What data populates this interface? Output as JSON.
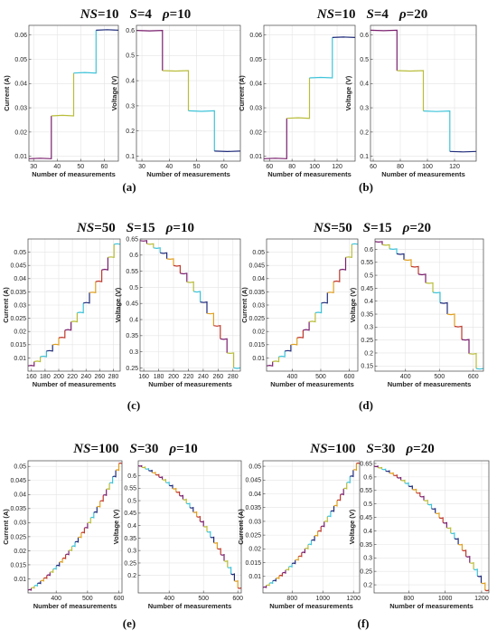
{
  "colors": [
    "#7a1f6e",
    "#b9bd3a",
    "#3ec3d9",
    "#1f2b7a",
    "#e0a020",
    "#c0392b"
  ],
  "groups": [
    {
      "id": "a",
      "label": "(a)",
      "title": {
        "ns_label": "NS",
        "ns_value": "=10",
        "s_label": "S",
        "s_value": "=4",
        "rho_label": "ρ",
        "rho_value": "=10"
      }
    },
    {
      "id": "b",
      "label": "(b)",
      "title": {
        "ns_label": "NS",
        "ns_value": "=10",
        "s_label": "S",
        "s_value": "=4",
        "rho_label": "ρ",
        "rho_value": "=20"
      }
    },
    {
      "id": "c",
      "label": "(c)",
      "title": {
        "ns_label": "NS",
        "ns_value": "=50",
        "s_label": "S",
        "s_value": "=15",
        "rho_label": "ρ",
        "rho_value": "=10"
      }
    },
    {
      "id": "d",
      "label": "(d)",
      "title": {
        "ns_label": "NS",
        "ns_value": "=50",
        "s_label": "S",
        "s_value": "=15",
        "rho_label": "ρ",
        "rho_value": "=20"
      }
    },
    {
      "id": "e",
      "label": "(e)",
      "title": {
        "ns_label": "NS",
        "ns_value": "=100",
        "s_label": "S",
        "s_value": "=30",
        "rho_label": "ρ",
        "rho_value": "=10"
      }
    },
    {
      "id": "f",
      "label": "(f)",
      "title": {
        "ns_label": "NS",
        "ns_value": "=100",
        "s_label": "S",
        "s_value": "=30",
        "rho_label": "ρ",
        "rho_value": "=20"
      }
    }
  ],
  "chart_data": [
    {
      "id": "a-current",
      "type": "line",
      "xlabel": "Number of measurements",
      "ylabel": "Current (A)",
      "xlim": [
        28,
        66
      ],
      "ylim": [
        0.008,
        0.064
      ],
      "xticks": [
        "30",
        "40",
        "50",
        "60"
      ],
      "yticks": [
        "0.01",
        "0.02",
        "0.03",
        "0.04",
        "0.05",
        "0.06"
      ],
      "steps": 4,
      "y_start": 0.009,
      "y_end": 0.062,
      "curve": "linear"
    },
    {
      "id": "a-voltage",
      "type": "line",
      "xlabel": "Number of measurements",
      "ylabel": "Voltage (V)",
      "xlim": [
        28,
        66
      ],
      "ylim": [
        0.08,
        0.62
      ],
      "xticks": [
        "30",
        "40",
        "50",
        "60"
      ],
      "yticks": [
        "0.1",
        "0.2",
        "0.3",
        "0.4",
        "0.5",
        "0.6"
      ],
      "steps": 4,
      "y_start": 0.6,
      "y_end": 0.12,
      "curve": "linear"
    },
    {
      "id": "b-current",
      "type": "line",
      "xlabel": "Number of measurements",
      "ylabel": "Current (A)",
      "xlim": [
        55,
        136
      ],
      "ylim": [
        0.008,
        0.064
      ],
      "xticks": [
        "60",
        "80",
        "100",
        "120"
      ],
      "yticks": [
        "0.01",
        "0.02",
        "0.03",
        "0.04",
        "0.05",
        "0.06"
      ],
      "steps": 4,
      "y_start": 0.009,
      "y_end": 0.059,
      "curve": "linear"
    },
    {
      "id": "b-voltage",
      "type": "line",
      "xlabel": "Number of measurements",
      "ylabel": "Voltage (V)",
      "xlim": [
        58,
        136
      ],
      "ylim": [
        0.08,
        0.64
      ],
      "xticks": [
        "60",
        "80",
        "100",
        "120"
      ],
      "yticks": [
        "0.1",
        "0.2",
        "0.3",
        "0.4",
        "0.5",
        "0.6"
      ],
      "steps": 4,
      "y_start": 0.62,
      "y_end": 0.12,
      "curve": "linear"
    },
    {
      "id": "c-current",
      "type": "line",
      "xlabel": "Number of measurements",
      "ylabel": "Current (A)",
      "xlim": [
        155,
        290
      ],
      "ylim": [
        0.005,
        0.055
      ],
      "xticks": [
        "160",
        "180",
        "200",
        "220",
        "240",
        "260",
        "280"
      ],
      "yticks": [
        "0.01",
        "0.015",
        "0.02",
        "0.025",
        "0.03",
        "0.035",
        "0.04",
        "0.045",
        "0.05"
      ],
      "steps": 15,
      "y_start": 0.007,
      "y_end": 0.053,
      "curve": "rising"
    },
    {
      "id": "c-voltage",
      "type": "line",
      "xlabel": "Number of measurements",
      "ylabel": "Voltage (V)",
      "xlim": [
        155,
        290
      ],
      "ylim": [
        0.24,
        0.65
      ],
      "xticks": [
        "160",
        "180",
        "200",
        "220",
        "240",
        "260",
        "280"
      ],
      "yticks": [
        "0.25",
        "0.3",
        "0.35",
        "0.4",
        "0.45",
        "0.5",
        "0.55",
        "0.6",
        "0.65"
      ],
      "steps": 15,
      "y_start": 0.645,
      "y_end": 0.25,
      "curve": "falling"
    },
    {
      "id": "d-current",
      "type": "line",
      "xlabel": "Number of measurements",
      "ylabel": "Current (A)",
      "xlim": [
        310,
        630
      ],
      "ylim": [
        0.005,
        0.055
      ],
      "xticks": [
        "400",
        "500",
        "600"
      ],
      "yticks": [
        "0.01",
        "0.015",
        "0.02",
        "0.025",
        "0.03",
        "0.035",
        "0.04",
        "0.045",
        "0.05"
      ],
      "steps": 15,
      "y_start": 0.007,
      "y_end": 0.053,
      "curve": "rising"
    },
    {
      "id": "d-voltage",
      "type": "line",
      "xlabel": "Number of measurements",
      "ylabel": "Voltage (V)",
      "xlim": [
        310,
        630
      ],
      "ylim": [
        0.13,
        0.64
      ],
      "xticks": [
        "400",
        "500",
        "600"
      ],
      "yticks": [
        "0.15",
        "0.2",
        "0.25",
        "0.3",
        "0.35",
        "0.4",
        "0.45",
        "0.5",
        "0.55",
        "0.6"
      ],
      "steps": 15,
      "y_start": 0.63,
      "y_end": 0.14,
      "curve": "falling"
    },
    {
      "id": "e-current",
      "type": "line",
      "xlabel": "Number of measurements",
      "ylabel": "Current (A)",
      "xlim": [
        310,
        610
      ],
      "ylim": [
        0.005,
        0.052
      ],
      "xticks": [
        "400",
        "500",
        "600"
      ],
      "yticks": [
        "0.01",
        "0.015",
        "0.02",
        "0.025",
        "0.03",
        "0.035",
        "0.04",
        "0.045",
        "0.05"
      ],
      "steps": 30,
      "y_start": 0.006,
      "y_end": 0.051,
      "curve": "rising"
    },
    {
      "id": "e-voltage",
      "type": "line",
      "xlabel": "Number of measurements",
      "ylabel": "Voltage (V)",
      "xlim": [
        310,
        610
      ],
      "ylim": [
        0.13,
        0.66
      ],
      "xticks": [
        "400",
        "500",
        "600"
      ],
      "yticks": [
        "0.2",
        "0.25",
        "0.3",
        "0.35",
        "0.4",
        "0.45",
        "0.5",
        "0.55",
        "0.6"
      ],
      "steps": 30,
      "y_start": 0.64,
      "y_end": 0.15,
      "curve": "falling"
    },
    {
      "id": "f-current",
      "type": "line",
      "xlabel": "Number of measurements",
      "ylabel": "Current (A)",
      "xlim": [
        610,
        1240
      ],
      "ylim": [
        0.004,
        0.052
      ],
      "xticks": [
        "800",
        "1000",
        "1200"
      ],
      "yticks": [
        "0.01",
        "0.015",
        "0.02",
        "0.025",
        "0.03",
        "0.035",
        "0.04",
        "0.045",
        "0.05"
      ],
      "steps": 30,
      "y_start": 0.006,
      "y_end": 0.051,
      "curve": "rising"
    },
    {
      "id": "f-voltage",
      "type": "line",
      "xlabel": "Number of measurements",
      "ylabel": "Voltage (V)",
      "xlim": [
        610,
        1240
      ],
      "ylim": [
        0.17,
        0.66
      ],
      "xticks": [
        "800",
        "1000",
        "1200"
      ],
      "yticks": [
        "0.2",
        "0.25",
        "0.3",
        "0.35",
        "0.4",
        "0.45",
        "0.5",
        "0.55",
        "0.6",
        "0.65"
      ],
      "steps": 30,
      "y_start": 0.64,
      "y_end": 0.18,
      "curve": "falling"
    }
  ]
}
